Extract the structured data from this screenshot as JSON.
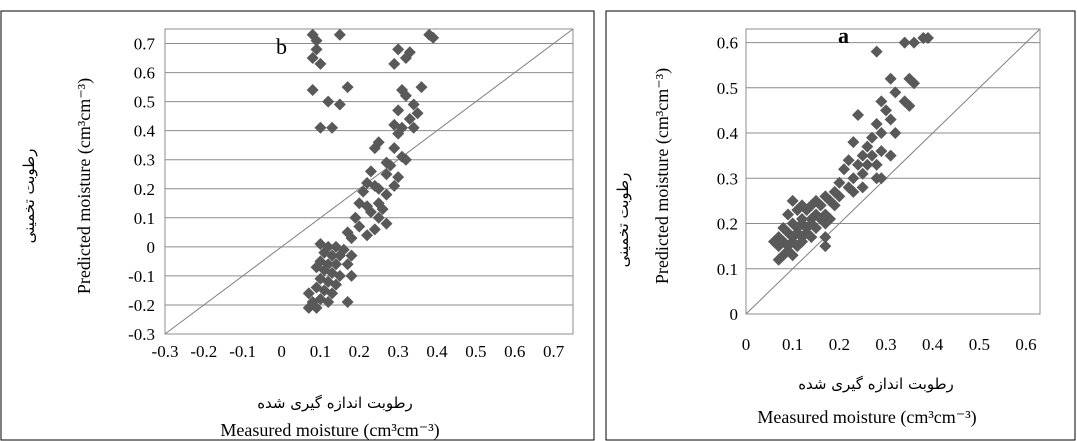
{
  "chart_data": [
    {
      "panel_id": "b",
      "type": "scatter",
      "panel_label": "b",
      "xlabel_fa": "رطوبت اندازه گیری شده",
      "xlabel": "Measured moisture (cm³cm⁻³)",
      "ylabel_fa": "رطوبت تخمینی",
      "ylabel": "Predicted moisture (cm³cm⁻³)",
      "xlim": [
        -0.3,
        0.75
      ],
      "ylim": [
        -0.3,
        0.75
      ],
      "x_ticks": [
        "-0.3",
        "-0.2",
        "-0.1",
        "0",
        "0.1",
        "0.2",
        "0.3",
        "0.4",
        "0.5",
        "0.6",
        "0.7"
      ],
      "y_ticks": [
        "-0.3",
        "-0.2",
        "-0.1",
        "0",
        "0.1",
        "0.2",
        "0.3",
        "0.4",
        "0.5",
        "0.6",
        "0.7"
      ],
      "grid": "horizontal",
      "reference_line": "1:1",
      "marker": "diamond",
      "marker_color": "#595959",
      "points": [
        [
          0.08,
          0.73
        ],
        [
          0.09,
          0.71
        ],
        [
          0.15,
          0.73
        ],
        [
          0.09,
          0.68
        ],
        [
          0.08,
          0.65
        ],
        [
          0.1,
          0.63
        ],
        [
          0.38,
          0.73
        ],
        [
          0.39,
          0.72
        ],
        [
          0.3,
          0.68
        ],
        [
          0.33,
          0.67
        ],
        [
          0.32,
          0.65
        ],
        [
          0.29,
          0.63
        ],
        [
          0.08,
          0.54
        ],
        [
          0.17,
          0.55
        ],
        [
          0.12,
          0.5
        ],
        [
          0.15,
          0.49
        ],
        [
          0.1,
          0.41
        ],
        [
          0.13,
          0.41
        ],
        [
          0.36,
          0.55
        ],
        [
          0.31,
          0.54
        ],
        [
          0.32,
          0.52
        ],
        [
          0.34,
          0.49
        ],
        [
          0.35,
          0.46
        ],
        [
          0.3,
          0.47
        ],
        [
          0.33,
          0.44
        ],
        [
          0.29,
          0.42
        ],
        [
          0.31,
          0.41
        ],
        [
          0.34,
          0.41
        ],
        [
          0.3,
          0.39
        ],
        [
          0.25,
          0.36
        ],
        [
          0.24,
          0.34
        ],
        [
          0.29,
          0.34
        ],
        [
          0.31,
          0.31
        ],
        [
          0.32,
          0.3
        ],
        [
          0.27,
          0.29
        ],
        [
          0.28,
          0.28
        ],
        [
          0.23,
          0.26
        ],
        [
          0.27,
          0.25
        ],
        [
          0.3,
          0.24
        ],
        [
          0.22,
          0.22
        ],
        [
          0.24,
          0.21
        ],
        [
          0.29,
          0.21
        ],
        [
          0.25,
          0.2
        ],
        [
          0.21,
          0.19
        ],
        [
          0.27,
          0.18
        ],
        [
          0.2,
          0.15
        ],
        [
          0.22,
          0.14
        ],
        [
          0.25,
          0.15
        ],
        [
          0.23,
          0.12
        ],
        [
          0.26,
          0.13
        ],
        [
          0.19,
          0.1
        ],
        [
          0.25,
          0.1
        ],
        [
          0.27,
          0.08
        ],
        [
          0.2,
          0.07
        ],
        [
          0.24,
          0.06
        ],
        [
          0.17,
          0.05
        ],
        [
          0.22,
          0.04
        ],
        [
          0.18,
          0.03
        ],
        [
          0.1,
          0.01
        ],
        [
          0.12,
          0.0
        ],
        [
          0.14,
          0.0
        ],
        [
          0.16,
          -0.01
        ],
        [
          0.11,
          -0.02
        ],
        [
          0.13,
          -0.03
        ],
        [
          0.15,
          -0.03
        ],
        [
          0.18,
          -0.03
        ],
        [
          0.1,
          -0.05
        ],
        [
          0.12,
          -0.06
        ],
        [
          0.14,
          -0.06
        ],
        [
          0.17,
          -0.06
        ],
        [
          0.09,
          -0.07
        ],
        [
          0.11,
          -0.08
        ],
        [
          0.13,
          -0.09
        ],
        [
          0.15,
          -0.1
        ],
        [
          0.18,
          -0.1
        ],
        [
          0.1,
          -0.11
        ],
        [
          0.12,
          -0.12
        ],
        [
          0.14,
          -0.13
        ],
        [
          0.09,
          -0.14
        ],
        [
          0.11,
          -0.15
        ],
        [
          0.13,
          -0.16
        ],
        [
          0.07,
          -0.16
        ],
        [
          0.1,
          -0.18
        ],
        [
          0.08,
          -0.19
        ],
        [
          0.12,
          -0.19
        ],
        [
          0.17,
          -0.19
        ],
        [
          0.07,
          -0.21
        ],
        [
          0.09,
          -0.21
        ]
      ]
    },
    {
      "panel_id": "a",
      "type": "scatter",
      "panel_label": "a",
      "xlabel_fa": "رطوبت اندازه گیری شده",
      "xlabel": "Measured moisture (cm³cm⁻³)",
      "ylabel_fa": "رطوبت تخمینی",
      "ylabel": "Predicted moisture (cm³cm⁻³)",
      "xlim": [
        0,
        0.63
      ],
      "ylim": [
        0,
        0.63
      ],
      "x_ticks": [
        "0",
        "0.1",
        "0.2",
        "0.3",
        "0.4",
        "0.5",
        "0.6"
      ],
      "y_ticks": [
        "0",
        "0.1",
        "0.2",
        "0.3",
        "0.4",
        "0.5",
        "0.6"
      ],
      "grid": "horizontal",
      "reference_line": "1:1",
      "marker": "diamond",
      "marker_color": "#595959",
      "points": [
        [
          0.38,
          0.61
        ],
        [
          0.39,
          0.61
        ],
        [
          0.34,
          0.6
        ],
        [
          0.36,
          0.6
        ],
        [
          0.28,
          0.58
        ],
        [
          0.35,
          0.52
        ],
        [
          0.36,
          0.51
        ],
        [
          0.31,
          0.52
        ],
        [
          0.32,
          0.49
        ],
        [
          0.29,
          0.47
        ],
        [
          0.34,
          0.47
        ],
        [
          0.35,
          0.46
        ],
        [
          0.3,
          0.45
        ],
        [
          0.31,
          0.43
        ],
        [
          0.28,
          0.42
        ],
        [
          0.24,
          0.44
        ],
        [
          0.29,
          0.4
        ],
        [
          0.32,
          0.4
        ],
        [
          0.27,
          0.39
        ],
        [
          0.23,
          0.38
        ],
        [
          0.26,
          0.37
        ],
        [
          0.29,
          0.36
        ],
        [
          0.25,
          0.35
        ],
        [
          0.27,
          0.35
        ],
        [
          0.31,
          0.35
        ],
        [
          0.22,
          0.34
        ],
        [
          0.24,
          0.33
        ],
        [
          0.26,
          0.33
        ],
        [
          0.28,
          0.33
        ],
        [
          0.21,
          0.32
        ],
        [
          0.25,
          0.31
        ],
        [
          0.28,
          0.3
        ],
        [
          0.23,
          0.3
        ],
        [
          0.29,
          0.3
        ],
        [
          0.2,
          0.29
        ],
        [
          0.22,
          0.28
        ],
        [
          0.25,
          0.28
        ],
        [
          0.19,
          0.27
        ],
        [
          0.23,
          0.27
        ],
        [
          0.2,
          0.26
        ],
        [
          0.17,
          0.26
        ],
        [
          0.15,
          0.25
        ],
        [
          0.18,
          0.25
        ],
        [
          0.1,
          0.25
        ],
        [
          0.12,
          0.24
        ],
        [
          0.14,
          0.24
        ],
        [
          0.16,
          0.24
        ],
        [
          0.19,
          0.24
        ],
        [
          0.11,
          0.23
        ],
        [
          0.13,
          0.23
        ],
        [
          0.15,
          0.22
        ],
        [
          0.17,
          0.22
        ],
        [
          0.09,
          0.22
        ],
        [
          0.12,
          0.21
        ],
        [
          0.14,
          0.21
        ],
        [
          0.16,
          0.21
        ],
        [
          0.18,
          0.21
        ],
        [
          0.1,
          0.2
        ],
        [
          0.12,
          0.2
        ],
        [
          0.14,
          0.2
        ],
        [
          0.17,
          0.2
        ],
        [
          0.08,
          0.19
        ],
        [
          0.11,
          0.19
        ],
        [
          0.13,
          0.19
        ],
        [
          0.15,
          0.19
        ],
        [
          0.09,
          0.18
        ],
        [
          0.11,
          0.18
        ],
        [
          0.13,
          0.18
        ],
        [
          0.07,
          0.17
        ],
        [
          0.1,
          0.17
        ],
        [
          0.12,
          0.17
        ],
        [
          0.14,
          0.17
        ],
        [
          0.08,
          0.16
        ],
        [
          0.1,
          0.16
        ],
        [
          0.12,
          0.16
        ],
        [
          0.17,
          0.17
        ],
        [
          0.06,
          0.16
        ],
        [
          0.09,
          0.15
        ],
        [
          0.11,
          0.15
        ],
        [
          0.07,
          0.15
        ],
        [
          0.09,
          0.14
        ],
        [
          0.08,
          0.13
        ],
        [
          0.1,
          0.13
        ],
        [
          0.07,
          0.12
        ],
        [
          0.17,
          0.15
        ]
      ]
    }
  ]
}
